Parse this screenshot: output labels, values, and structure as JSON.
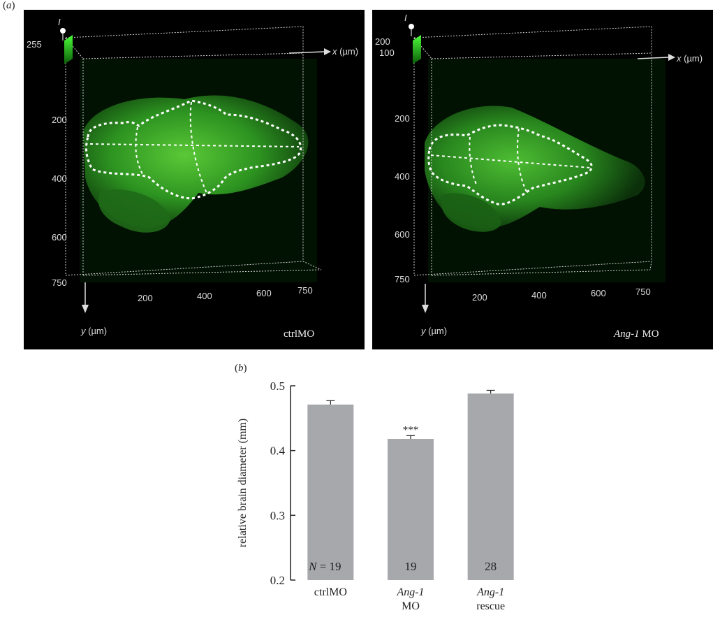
{
  "panel_a": {
    "label_paren_open": "(",
    "label_letter": "a",
    "label_paren_close": ")",
    "left": {
      "condition": "ctrlMO",
      "intensity_label": "I",
      "intensity_ticks": [
        "255"
      ],
      "x_axis_title": "x (µm)",
      "y_axis_title": "y (µm)",
      "x_ticks": [
        "200",
        "400",
        "600",
        "750"
      ],
      "y_ticks": [
        "200",
        "400",
        "600",
        "750"
      ]
    },
    "right": {
      "condition_italic": "Ang-1",
      "condition_rest": " MO",
      "intensity_label": "I",
      "intensity_ticks": [
        "200",
        "100"
      ],
      "x_axis_title": "x (µm)",
      "y_axis_title": "y (µm)",
      "x_ticks": [
        "200",
        "400",
        "600",
        "750"
      ],
      "y_ticks": [
        "200",
        "400",
        "600",
        "750"
      ]
    }
  },
  "panel_b": {
    "label_paren_open": "(",
    "label_letter": "b",
    "label_paren_close": ")"
  },
  "chart_data": {
    "type": "bar",
    "categories": [
      {
        "line1": "ctrlMO",
        "line1_italic": false,
        "line2": ""
      },
      {
        "line1": "Ang-1",
        "line1_italic": true,
        "line2": "MO"
      },
      {
        "line1": "Ang-1",
        "line1_italic": true,
        "line2": "rescue"
      }
    ],
    "values": [
      0.471,
      0.418,
      0.488
    ],
    "errors": [
      0.006,
      0.005,
      0.005
    ],
    "n_labels": [
      "19",
      "19",
      "28"
    ],
    "n_prefix": "N = ",
    "significance": [
      "",
      "***",
      ""
    ],
    "ylabel": "relative brain diameter (mm)",
    "ylim": [
      0.2,
      0.5
    ],
    "yticks": [
      "0.2",
      "0.3",
      "0.4",
      "0.5"
    ],
    "bar_color": "#a7a8ac"
  }
}
